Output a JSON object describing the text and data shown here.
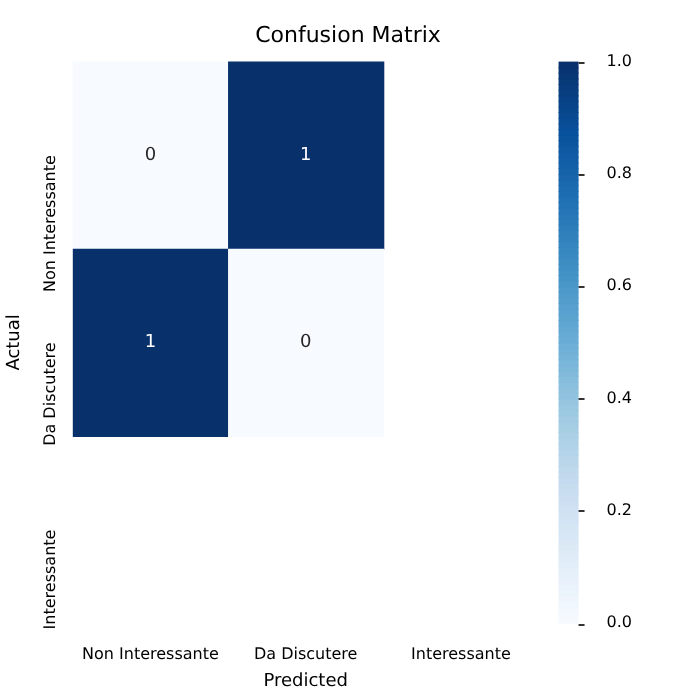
{
  "chart_data": {
    "type": "heatmap",
    "title": "Confusion Matrix",
    "xlabel": "Predicted",
    "ylabel": "Actual",
    "categories": [
      "Non Interessante",
      "Da Discutere",
      "Interessante"
    ],
    "y_categories": [
      "Non Interessante",
      "Da Discutere",
      "Interessante"
    ],
    "cells": [
      [
        0,
        1,
        null
      ],
      [
        1,
        0,
        null
      ],
      [
        null,
        null,
        null
      ]
    ],
    "clim": [
      0,
      1
    ],
    "cticks": [
      {
        "value": 0,
        "label": "0.0"
      },
      {
        "value": 0.2,
        "label": "0.2"
      },
      {
        "value": 0.4,
        "label": "0.4"
      },
      {
        "value": 0.6,
        "label": "0.6"
      },
      {
        "value": 0.8,
        "label": "0.8"
      },
      {
        "value": 1,
        "label": "1.0"
      }
    ],
    "data_labels": true
  }
}
